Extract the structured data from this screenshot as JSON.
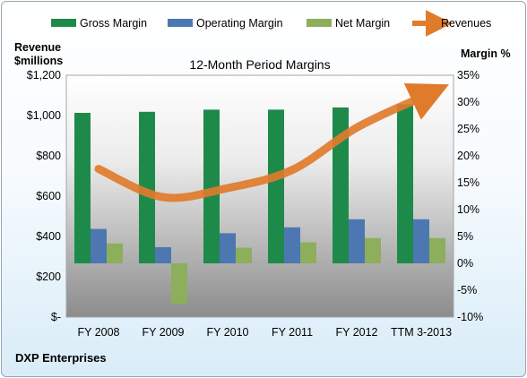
{
  "chart_data": {
    "type": "bar",
    "title": "12-Month Period Margins",
    "left_axis_title_line1": "Revenue",
    "left_axis_title_line2": "$millions",
    "right_axis_title": "Margin %",
    "footer": "DXP Enterprises",
    "categories": [
      "FY 2008",
      "FY 2009",
      "FY 2010",
      "FY 2011",
      "FY 2012",
      "TTM 3-2013"
    ],
    "left_ticks": [
      "$-",
      "$200",
      "$400",
      "$600",
      "$800",
      "$1,000",
      "$1,200"
    ],
    "right_ticks": [
      "-10%",
      "-5%",
      "0%",
      "5%",
      "10%",
      "15%",
      "20%",
      "25%",
      "30%",
      "35%"
    ],
    "left_ylim": [
      0,
      1200
    ],
    "right_ylim": [
      -10,
      35
    ],
    "grid": false,
    "legend_position": "top",
    "series": [
      {
        "name": "Gross Margin",
        "kind": "bar",
        "axis": "right",
        "color": "#1e8a4a",
        "values": [
          28.0,
          28.2,
          28.6,
          28.6,
          29.0,
          29.6
        ]
      },
      {
        "name": "Operating Margin",
        "kind": "bar",
        "axis": "right",
        "color": "#4d77b1",
        "values": [
          6.4,
          3.0,
          5.6,
          6.7,
          8.2,
          8.2
        ]
      },
      {
        "name": "Net Margin",
        "kind": "bar",
        "axis": "right",
        "color": "#8dae5b",
        "values": [
          3.7,
          -7.5,
          2.9,
          3.9,
          4.7,
          4.7
        ]
      },
      {
        "name": "Revenues",
        "kind": "line",
        "axis": "left",
        "color": "#e07b2c",
        "values": [
          735,
          595,
          640,
          730,
          940,
          1090
        ]
      }
    ]
  }
}
